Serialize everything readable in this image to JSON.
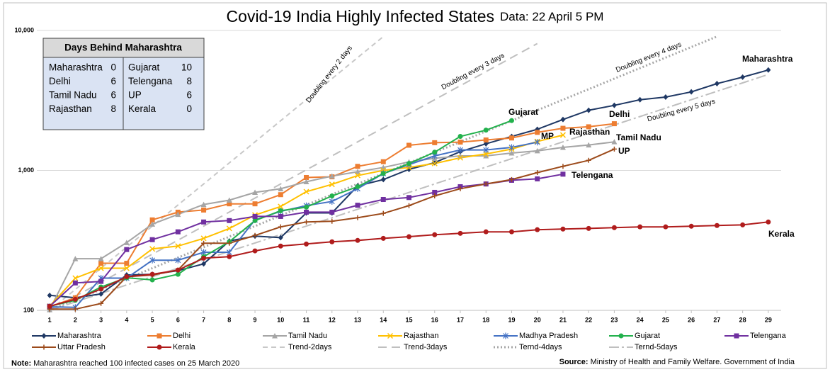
{
  "chart_data": {
    "type": "line",
    "title": "Covid-19 India Highly Infected States",
    "subtitle": "Data: 22 April 5 PM",
    "log_scale": true,
    "grid": true,
    "x": [
      1,
      2,
      3,
      4,
      5,
      6,
      7,
      8,
      9,
      10,
      11,
      12,
      13,
      14,
      15,
      16,
      17,
      18,
      19,
      20,
      21,
      22,
      23,
      24,
      25,
      26,
      27,
      28,
      29
    ],
    "xlim": [
      0.5,
      29.5
    ],
    "xticks": [
      1,
      2,
      3,
      4,
      5,
      6,
      7,
      8,
      9,
      10,
      11,
      12,
      13,
      14,
      15,
      16,
      17,
      18,
      19,
      20,
      21,
      22,
      23,
      24,
      25,
      26,
      27,
      28,
      29
    ],
    "ylim": [
      100,
      10000
    ],
    "yticks": [
      100,
      {
        "value": 1000,
        "label": "1,000"
      },
      {
        "value": 10000,
        "label": "10,000"
      }
    ],
    "series": [
      {
        "name": "Maharashtra",
        "color": "#1f3864",
        "marker": "diamond",
        "style": "solid",
        "values": [
          128,
          123,
          131,
          179,
          181,
          192,
          215,
          313,
          339,
          331,
          497,
          497,
          775,
          860,
          1018,
          1135,
          1364,
          1551,
          1747,
          1966,
          2310,
          2690,
          2917,
          3198,
          3343,
          3640,
          4170,
          4640,
          5218
        ]
      },
      {
        "name": "Delhi",
        "color": "#ed7d31",
        "marker": "square",
        "style": "solid",
        "values": [
          106,
          123,
          217,
          217,
          443,
          503,
          521,
          577,
          577,
          671,
          890,
          900,
          1069,
          1154,
          1513,
          1578,
          1593,
          1650,
          1705,
          1870,
          2000,
          2050,
          2156,
          null,
          null,
          null,
          null,
          null,
          null
        ]
      },
      {
        "name": "Tamil Nadu",
        "color": "#a5a5a5",
        "marker": "triangle",
        "style": "solid",
        "values": [
          101,
          234,
          234,
          305,
          413,
          485,
          571,
          613,
          697,
          739,
          830,
          911,
          978,
          1050,
          1150,
          1220,
          1270,
          1270,
          1330,
          1380,
          1460,
          1520,
          1600,
          null,
          null,
          null,
          null,
          null,
          null
        ]
      },
      {
        "name": "Rajasthan",
        "color": "#ffc000",
        "marker": "x",
        "style": "solid",
        "values": [
          107,
          170,
          200,
          200,
          275,
          288,
          327,
          385,
          480,
          552,
          705,
          795,
          920,
          1000,
          1050,
          1120,
          1230,
          1310,
          1420,
          1610,
          1790,
          null,
          null,
          null,
          null,
          null,
          null,
          null,
          null
        ]
      },
      {
        "name": "Madhya Pradesh",
        "color": "#4472c4",
        "marker": "star",
        "style": "solid",
        "values": [
          106,
          105,
          170,
          170,
          228,
          228,
          260,
          260,
          443,
          510,
          560,
          600,
          740,
          950,
          1100,
          1270,
          1400,
          1400,
          1460,
          1590,
          null,
          null,
          null,
          null,
          null,
          null,
          null,
          null,
          null
        ]
      },
      {
        "name": "Gujarat",
        "color": "#22b14c",
        "marker": "circle",
        "style": "solid",
        "values": [
          107,
          118,
          147,
          171,
          165,
          181,
          242,
          309,
          438,
          515,
          546,
          657,
          765,
          950,
          1120,
          1350,
          1750,
          1940,
          2270,
          null,
          null,
          null,
          null,
          null,
          null,
          null,
          null,
          null,
          null
        ]
      },
      {
        "name": "Telengana",
        "color": "#7030a0",
        "marker": "square",
        "style": "solid",
        "values": [
          107,
          157,
          161,
          272,
          320,
          364,
          428,
          438,
          469,
          469,
          503,
          503,
          564,
          620,
          640,
          697,
          765,
          800,
          850,
          870,
          940,
          null,
          null,
          null,
          null,
          null,
          null,
          null,
          null
        ]
      },
      {
        "name": "Uttar Pradesh",
        "color": "#9c4a1a",
        "marker": "plus",
        "style": "solid",
        "values": [
          102,
          102,
          112,
          174,
          179,
          194,
          302,
          302,
          343,
          395,
          428,
          433,
          459,
          493,
          560,
          657,
          740,
          800,
          860,
          965,
          1070,
          1180,
          1420,
          null,
          null,
          null,
          null,
          null,
          null
        ]
      },
      {
        "name": "Kerala",
        "color": "#b01c1c",
        "marker": "circle",
        "style": "solid",
        "values": [
          107,
          120,
          142,
          174,
          181,
          194,
          236,
          242,
          266,
          288,
          298,
          309,
          316,
          327,
          336,
          347,
          355,
          364,
          364,
          377,
          381,
          385,
          390,
          395,
          395,
          399,
          404,
          408,
          428
        ]
      },
      {
        "name": "Trend-2days",
        "color": "#c8c8c8",
        "marker": "none",
        "style": "dashed",
        "values": [
          100,
          141,
          200,
          283,
          400,
          566,
          800,
          1131,
          1600,
          2263,
          3200,
          4525,
          6400,
          9051,
          null,
          null,
          null,
          null,
          null,
          null,
          null,
          null,
          null,
          null,
          null,
          null,
          null,
          null,
          null
        ]
      },
      {
        "name": "Trend-3days",
        "color": "#bfbfbf",
        "marker": "none",
        "style": "longdash",
        "values": [
          100,
          126,
          159,
          200,
          252,
          317,
          400,
          504,
          635,
          800,
          1008,
          1270,
          1600,
          2016,
          2540,
          3200,
          4032,
          5080,
          6400,
          8063,
          null,
          null,
          null,
          null,
          null,
          null,
          null,
          null,
          null
        ]
      },
      {
        "name": "Ternd-4days",
        "color": "#a6a6a6",
        "marker": "none",
        "style": "dotted",
        "values": [
          100,
          119,
          141,
          168,
          200,
          238,
          283,
          336,
          400,
          476,
          566,
          673,
          800,
          951,
          1131,
          1345,
          1600,
          1903,
          2263,
          2691,
          3200,
          3805,
          4525,
          5382,
          6400,
          7611,
          9051,
          null,
          null
        ]
      },
      {
        "name": "Ternd-5days",
        "color": "#bfbfbf",
        "marker": "none",
        "style": "dashdot",
        "values": [
          100,
          115,
          132,
          152,
          174,
          200,
          230,
          264,
          303,
          348,
          400,
          459,
          528,
          606,
          696,
          800,
          919,
          1056,
          1213,
          1393,
          1600,
          1838,
          2111,
          2425,
          2786,
          3200,
          3676,
          4222,
          4850
        ]
      }
    ],
    "annotations": [
      "Maharashtra",
      "Gujarat",
      "Delhi",
      "MP",
      "Rajasthan",
      "Tamil Nadu",
      "UP",
      "Telengana",
      "Kerala",
      "Doubling every 2 days",
      "Doubling every 3 days",
      "Doubling every 4 days",
      "Doubling every 5 days"
    ],
    "days_behind": {
      "title": "Days Behind Maharashtra",
      "rows": [
        [
          "Maharashtra",
          "0",
          "Gujarat",
          "10"
        ],
        [
          "Delhi",
          "6",
          "Telengana",
          "8"
        ],
        [
          "Tamil Nadu",
          "6",
          "UP",
          "6"
        ],
        [
          "Rajasthan",
          "8",
          "Kerala",
          "0"
        ]
      ]
    },
    "note_label": "Note:",
    "note": "Maharashtra reached 100 infected cases on 25 March 2020",
    "source_label": "Source:",
    "source": "Ministry of Health and Family Welfare. Government of India"
  }
}
